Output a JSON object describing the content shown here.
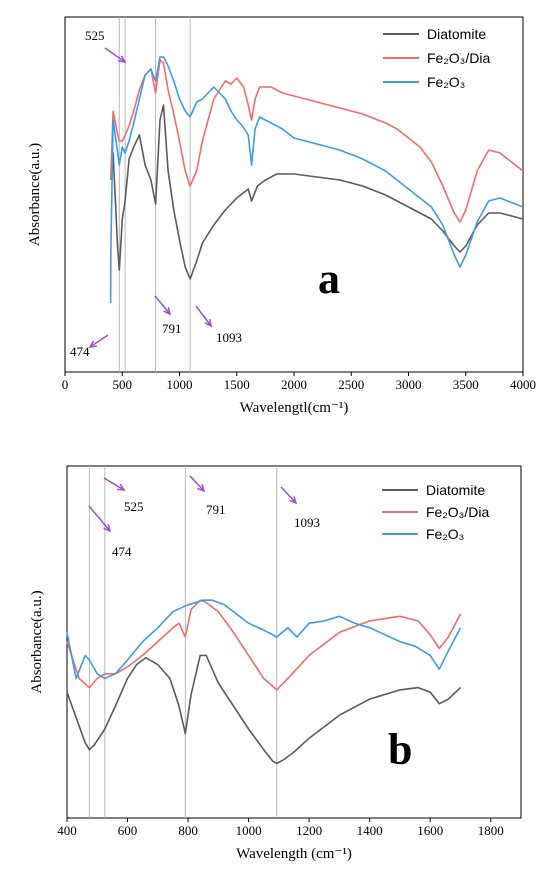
{
  "figure_label": "Figure",
  "chart_data": [
    {
      "panel": "a",
      "type": "line",
      "xlabel": "Wavelengtl(cm⁻¹)",
      "ylabel": "Absorbance(a.u.)",
      "xlim": [
        0,
        4000
      ],
      "xticks": [
        0,
        500,
        1000,
        1500,
        2000,
        2500,
        3000,
        3500,
        4000
      ],
      "ylim": [
        0,
        100
      ],
      "grid": false,
      "legend_placement": "top-right",
      "vlines": [
        474,
        525,
        791,
        1093
      ],
      "annotations": [
        {
          "text": "525",
          "x": 525
        },
        {
          "text": "474",
          "x": 474
        },
        {
          "text": "791",
          "x": 791
        },
        {
          "text": "1093",
          "x": 1093
        }
      ],
      "series": [
        {
          "name": "Diatomite",
          "color": "#5a5a5a",
          "x": [
            400,
            420,
            460,
            474,
            500,
            525,
            560,
            600,
            650,
            700,
            750,
            791,
            830,
            860,
            900,
            950,
            1000,
            1050,
            1093,
            1150,
            1200,
            1300,
            1400,
            1500,
            1600,
            1630,
            1680,
            1750,
            1850,
            2000,
            2200,
            2400,
            2600,
            2800,
            2900,
            3000,
            3100,
            3200,
            3300,
            3400,
            3450,
            3500,
            3600,
            3700,
            3800,
            4000
          ],
          "y": [
            55,
            64,
            32,
            25,
            42,
            48,
            62,
            66,
            70,
            60,
            55,
            47,
            75,
            80,
            58,
            45,
            35,
            26,
            22,
            28,
            34,
            40,
            45,
            49,
            52,
            48,
            53,
            55,
            57,
            57,
            56,
            55,
            53,
            50,
            48,
            46,
            44,
            42,
            38,
            33,
            31,
            33,
            40,
            44,
            44,
            42
          ]
        },
        {
          "name": "Fe₂O₃/Dia",
          "color": "#f26b6b",
          "x": [
            400,
            420,
            460,
            474,
            500,
            525,
            560,
            600,
            650,
            700,
            750,
            791,
            830,
            860,
            900,
            950,
            1000,
            1050,
            1093,
            1150,
            1200,
            1300,
            1400,
            1450,
            1500,
            1560,
            1600,
            1630,
            1660,
            1700,
            1800,
            1900,
            2000,
            2200,
            2400,
            2600,
            2800,
            2900,
            3000,
            3100,
            3200,
            3300,
            3400,
            3450,
            3500,
            3600,
            3700,
            3800,
            4000
          ],
          "y": [
            55,
            78,
            70,
            68,
            68,
            70,
            73,
            78,
            85,
            90,
            92,
            84,
            95,
            94,
            85,
            77,
            68,
            58,
            53,
            58,
            68,
            82,
            88,
            87,
            89,
            86,
            80,
            75,
            82,
            86,
            86,
            84,
            83,
            81,
            79,
            77,
            74,
            72,
            69,
            66,
            61,
            53,
            44,
            41,
            45,
            58,
            65,
            64,
            58
          ]
        },
        {
          "name": "Fe₂O₃",
          "color": "#3c9be8",
          "x": [
            398,
            400,
            420,
            460,
            474,
            500,
            525,
            560,
            600,
            650,
            700,
            750,
            791,
            830,
            860,
            900,
            950,
            1000,
            1050,
            1093,
            1150,
            1200,
            1250,
            1300,
            1350,
            1400,
            1450,
            1500,
            1550,
            1600,
            1630,
            1660,
            1700,
            1800,
            1900,
            2000,
            2200,
            2400,
            2600,
            2800,
            2900,
            3000,
            3100,
            3200,
            3300,
            3400,
            3450,
            3500,
            3600,
            3700,
            3800,
            4000
          ],
          "y": [
            14,
            30,
            75,
            64,
            60,
            66,
            64,
            68,
            74,
            82,
            90,
            92,
            88,
            96,
            96,
            93,
            88,
            82,
            78,
            76,
            81,
            82,
            84,
            86,
            84,
            82,
            78,
            75,
            73,
            70,
            60,
            72,
            76,
            74,
            72,
            69,
            67,
            65,
            62,
            58,
            55,
            52,
            49,
            46,
            40,
            30,
            26,
            30,
            41,
            48,
            49,
            46
          ]
        }
      ]
    },
    {
      "panel": "b",
      "type": "line",
      "xlabel": "Wavelength (cm⁻¹)",
      "ylabel": "Absorbance(a.u.)",
      "xlim": [
        400,
        1900
      ],
      "xticks": [
        400,
        600,
        800,
        1000,
        1200,
        1400,
        1600,
        1800
      ],
      "ylim": [
        0,
        100
      ],
      "grid": false,
      "legend_placement": "top-right",
      "vlines": [
        474,
        525,
        791,
        1093
      ],
      "annotations": [
        {
          "text": "525",
          "x": 525
        },
        {
          "text": "791",
          "x": 791
        },
        {
          "text": "1093",
          "x": 1093
        },
        {
          "text": "474",
          "x": 474
        }
      ],
      "series": [
        {
          "name": "Diatomite",
          "color": "#5a5a5a",
          "x": [
            400,
            430,
            460,
            474,
            490,
            525,
            560,
            600,
            630,
            660,
            700,
            740,
            770,
            791,
            810,
            840,
            860,
            900,
            950,
            1000,
            1050,
            1080,
            1093,
            1120,
            1150,
            1200,
            1300,
            1400,
            1500,
            1560,
            1600,
            1630,
            1660,
            1700
          ],
          "y": [
            36,
            25,
            14,
            11,
            13,
            20,
            30,
            42,
            48,
            51,
            48,
            42,
            30,
            18,
            35,
            52,
            52,
            40,
            30,
            20,
            11,
            6,
            5,
            7,
            10,
            16,
            26,
            33,
            37,
            38,
            36,
            31,
            33,
            38
          ]
        },
        {
          "name": "Fe₂O₃/Dia",
          "color": "#f26b6b",
          "x": [
            400,
            440,
            474,
            500,
            525,
            560,
            600,
            650,
            700,
            750,
            770,
            791,
            810,
            840,
            860,
            900,
            950,
            1000,
            1050,
            1093,
            1130,
            1200,
            1300,
            1400,
            1500,
            1560,
            1600,
            1630,
            1660,
            1700
          ],
          "y": [
            58,
            42,
            38,
            42,
            44,
            44,
            47,
            52,
            58,
            64,
            66,
            60,
            72,
            76,
            75,
            71,
            62,
            52,
            42,
            37,
            42,
            52,
            62,
            67,
            69,
            67,
            61,
            55,
            60,
            70
          ]
        },
        {
          "name": "Fe₂O₃",
          "color": "#3c9be8",
          "x": [
            400,
            430,
            460,
            474,
            500,
            525,
            560,
            600,
            650,
            700,
            750,
            800,
            850,
            880,
            920,
            960,
            1000,
            1050,
            1093,
            1130,
            1160,
            1200,
            1250,
            1300,
            1350,
            1400,
            1450,
            1500,
            1550,
            1600,
            1630,
            1660,
            1700
          ],
          "y": [
            62,
            42,
            52,
            50,
            44,
            42,
            44,
            50,
            58,
            64,
            71,
            74,
            76,
            76,
            74,
            70,
            66,
            63,
            60,
            64,
            60,
            66,
            67,
            69,
            66,
            64,
            61,
            58,
            56,
            52,
            46,
            54,
            64
          ]
        }
      ]
    }
  ]
}
